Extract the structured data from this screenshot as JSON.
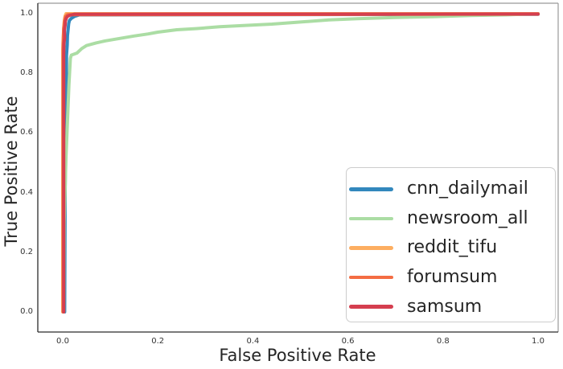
{
  "chart_data": {
    "type": "line",
    "subtype": "roc-curves",
    "title": "",
    "xlabel": "False Positive Rate",
    "ylabel": "True Positive Rate",
    "xlim": [
      0.0,
      1.0
    ],
    "ylim": [
      0.0,
      1.0
    ],
    "x_ticks": [
      0.0,
      0.2,
      0.4,
      0.6,
      0.8,
      1.0
    ],
    "x_tick_labels": [
      "0.0",
      "0.2",
      "0.4",
      "0.6",
      "0.8",
      "1.0"
    ],
    "y_ticks": [
      0.0,
      0.2,
      0.4,
      0.6,
      0.8,
      1.0
    ],
    "y_tick_labels": [
      "0.0",
      "0.2",
      "0.4",
      "0.6",
      "0.8",
      "1.0"
    ],
    "grid": false,
    "legend_position": "lower right",
    "series": [
      {
        "name": "cnn_dailymail",
        "color": "#3288bd",
        "points": [
          [
            0.004,
            0.0
          ],
          [
            0.005,
            0.4
          ],
          [
            0.006,
            0.55
          ],
          [
            0.0075,
            0.72
          ],
          [
            0.008,
            0.86
          ],
          [
            0.0095,
            0.895
          ],
          [
            0.01,
            0.925
          ],
          [
            0.0115,
            0.95
          ],
          [
            0.0125,
            0.966
          ],
          [
            0.014,
            0.977
          ],
          [
            0.018,
            0.984
          ],
          [
            0.025,
            0.991
          ],
          [
            0.035,
            0.996
          ],
          [
            1.0,
            0.998
          ]
        ]
      },
      {
        "name": "newsroom_all",
        "color": "#abdda4",
        "points": [
          [
            0.002,
            0.0
          ],
          [
            0.003,
            0.3
          ],
          [
            0.005,
            0.42
          ],
          [
            0.007,
            0.52
          ],
          [
            0.009,
            0.6
          ],
          [
            0.011,
            0.68
          ],
          [
            0.013,
            0.76
          ],
          [
            0.015,
            0.82
          ],
          [
            0.016,
            0.85
          ],
          [
            0.018,
            0.861
          ],
          [
            0.03,
            0.868
          ],
          [
            0.04,
            0.883
          ],
          [
            0.05,
            0.893
          ],
          [
            0.07,
            0.902
          ],
          [
            0.09,
            0.909
          ],
          [
            0.12,
            0.917
          ],
          [
            0.15,
            0.925
          ],
          [
            0.18,
            0.932
          ],
          [
            0.2,
            0.938
          ],
          [
            0.24,
            0.946
          ],
          [
            0.28,
            0.95
          ],
          [
            0.33,
            0.956
          ],
          [
            0.38,
            0.96
          ],
          [
            0.44,
            0.965
          ],
          [
            0.5,
            0.972
          ],
          [
            0.56,
            0.979
          ],
          [
            0.62,
            0.983
          ],
          [
            0.7,
            0.987
          ],
          [
            0.78,
            0.99
          ],
          [
            0.86,
            0.994
          ],
          [
            0.93,
            0.996
          ],
          [
            1.0,
            1.0
          ]
        ]
      },
      {
        "name": "reddit_tifu",
        "color": "#fdae61",
        "points": [
          [
            0.0,
            0.0
          ],
          [
            0.0,
            0.88
          ],
          [
            0.001,
            0.92
          ],
          [
            0.002,
            0.95
          ],
          [
            0.003,
            0.972
          ],
          [
            0.004,
            0.985
          ],
          [
            0.005,
            0.993
          ],
          [
            0.007,
            1.0
          ],
          [
            1.0,
            1.0
          ]
        ]
      },
      {
        "name": "forumsum",
        "color": "#f46d43",
        "points": [
          [
            0.001,
            0.0
          ],
          [
            0.001,
            0.9
          ],
          [
            0.002,
            0.95
          ],
          [
            0.004,
            0.978
          ],
          [
            0.006,
            0.99
          ],
          [
            0.01,
            0.9965
          ],
          [
            1.0,
            0.9985
          ]
        ]
      },
      {
        "name": "samsum",
        "color": "#d53e4f",
        "points": [
          [
            0.002,
            0.0
          ],
          [
            0.002,
            0.86
          ],
          [
            0.0025,
            0.9
          ],
          [
            0.004,
            0.92
          ],
          [
            0.0035,
            0.945
          ],
          [
            0.005,
            0.962
          ],
          [
            0.0055,
            0.975
          ],
          [
            0.0075,
            0.985
          ],
          [
            0.01,
            0.991
          ],
          [
            0.015,
            0.995
          ],
          [
            0.025,
            0.9985
          ],
          [
            1.0,
            0.999
          ]
        ]
      }
    ],
    "style": {
      "spine_dark": "#2b2b2b",
      "spine_light": "#999999",
      "line_width": 4,
      "background": "#ffffff",
      "text_color": "#262626",
      "tick_color": "#333333",
      "legend_border": "#cccccc"
    }
  }
}
